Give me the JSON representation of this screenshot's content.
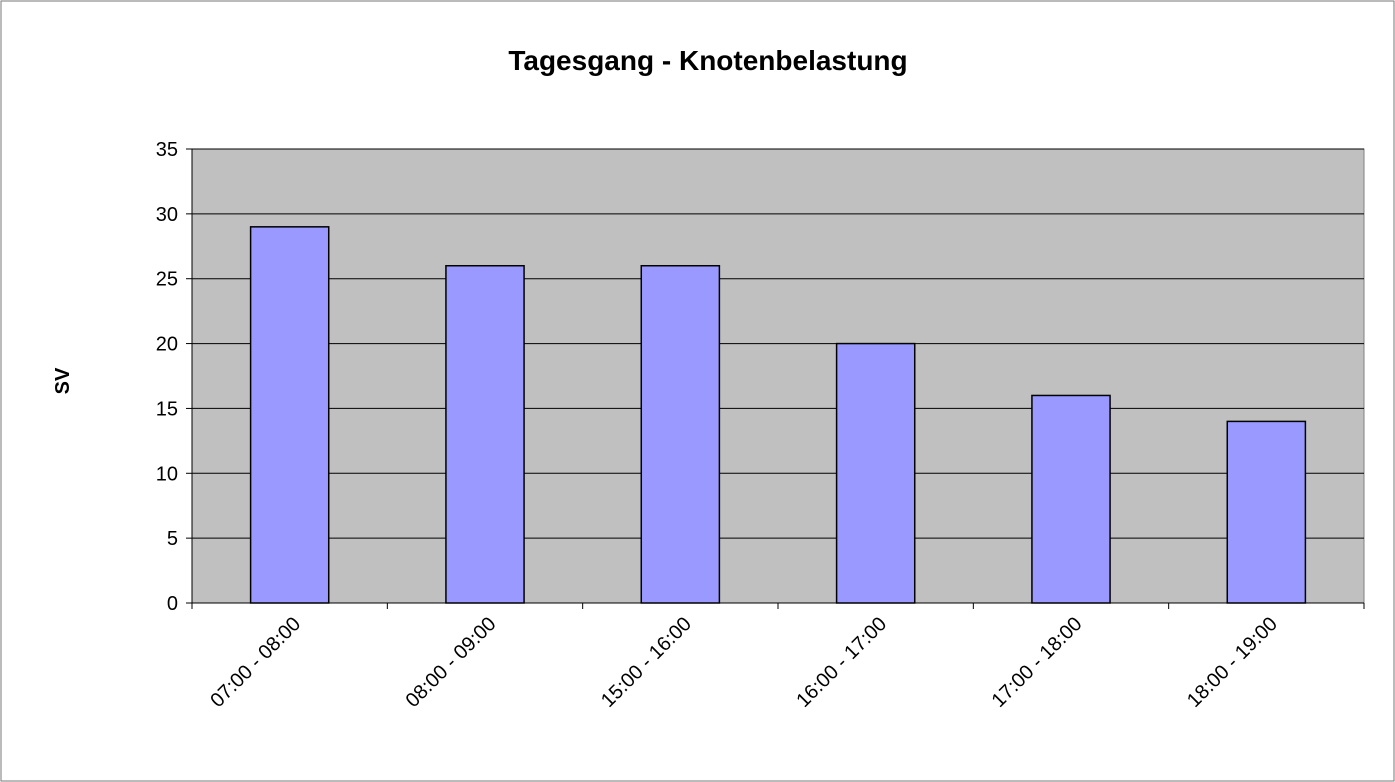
{
  "chart_data": {
    "type": "bar",
    "title": "Tagesgang - Knotenbelastung",
    "y_label": "SV",
    "categories": [
      "07:00 - 08:00",
      "08:00 - 09:00",
      "15:00 - 16:00",
      "16:00 - 17:00",
      "17:00 - 18:00",
      "18:00 - 19:00"
    ],
    "values": [
      29,
      26,
      26,
      20,
      16,
      14
    ],
    "color": "#9999ff",
    "ylim": [
      0,
      35
    ],
    "yticks": [
      0,
      5,
      10,
      15,
      20,
      25,
      30,
      35
    ],
    "grid": true
  }
}
